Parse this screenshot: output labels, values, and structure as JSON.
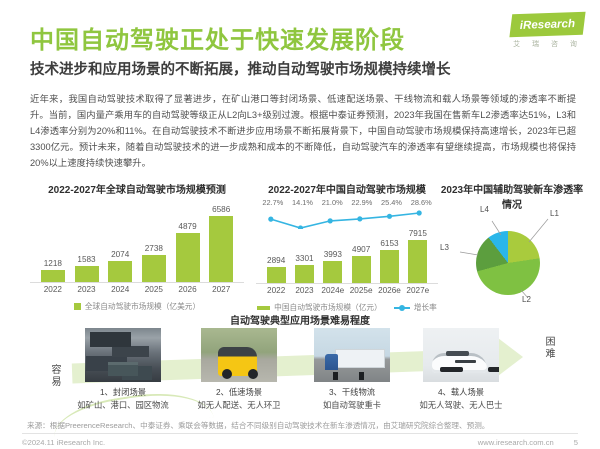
{
  "header": {
    "title": "中国自动驾驶正处于快速发展阶段",
    "subtitle": "技术进步和应用场景的不断拓展，推动自动驾驶市场规模持续增长",
    "logo": {
      "brand": "iResearch",
      "brand_cn": "艾 瑞 咨 询"
    }
  },
  "intro_paragraph": "近年来，我国自动驾驶技术取得了显著进步，在矿山港口等封闭场景、低速配送场景、干线物流和载人场景等领域的渗透率不断提升。当前，国内量产乘用车的自动驾驶等级正从L2向L3+级别过渡。根据中泰证券预测，2023年我国在售新车L2渗透率达51%，L3和L4渗透率分别为20%和11%。在自动驾驶技术不断进步应用场景不断拓展背景下，中国自动驾驶市场规模保持高速增长，2023年已超3300亿元。预计未来，随着自动驾驶技术的进一步成熟和成本的不断降低，自动驾驶汽车的渗透率有望继续提高，市场规模也将保持20%以上速度持续快速攀升。",
  "colors": {
    "accent": "#8fc63f",
    "bar": "#a5c93e",
    "line": "#35b5e2"
  },
  "chart_data": [
    {
      "type": "bar",
      "title": "2022-2027年全球自动驾驶市场规模预测",
      "categories": [
        "2022",
        "2023",
        "2024",
        "2025",
        "2026",
        "2027"
      ],
      "values": [
        1218,
        1583,
        2074,
        2738,
        4879,
        6586
      ],
      "legend": [
        "全球自动驾驶市场规模（亿美元）"
      ],
      "ylabel": "",
      "xlabel": "",
      "ylim": [
        0,
        7000
      ],
      "grid": false
    },
    {
      "type": "bar+line",
      "title": "2022-2027年中国自动驾驶市场规模",
      "categories": [
        "2022",
        "2023",
        "2024e",
        "2025e",
        "2026e",
        "2027e"
      ],
      "series": [
        {
          "name": "中国自动驾驶市场规模（亿元）",
          "type": "bar",
          "values": [
            2894,
            3301,
            3993,
            4907,
            6153,
            7915
          ]
        },
        {
          "name": "增长率",
          "type": "line",
          "values": [
            22.7,
            14.1,
            21.0,
            22.9,
            25.4,
            28.6
          ],
          "display": [
            "22.7%",
            "14.1%",
            "21.0%",
            "22.9%",
            "25.4%",
            "28.6%"
          ]
        }
      ],
      "ylim": [
        0,
        8500
      ],
      "grid": false,
      "legend_position": "bottom"
    },
    {
      "type": "pie",
      "title": "2023年中国辅助驾驶新车渗透率情况",
      "slices": [
        {
          "label": "L1",
          "value": 24,
          "display": "24%",
          "color": "#a9cb3d"
        },
        {
          "label": "L2",
          "value": 51,
          "display": "51%",
          "color": "#7fc142"
        },
        {
          "label": "L3",
          "value": 20,
          "display": "20%",
          "color": "#5c9e3e"
        },
        {
          "label": "L4",
          "value": 11,
          "display": "11%",
          "color": "#2ab6e9"
        }
      ]
    }
  ],
  "scenarios": {
    "title": "自动驾驶典型应用场景难易程度",
    "easy_label": "容易",
    "hard_label": "困难",
    "items": [
      {
        "name": "1、封闭场景",
        "desc": "如矿山、港口、园区物流",
        "image": "port-containers"
      },
      {
        "name": "2、低速场景",
        "desc": "如无人配送、无人环卫",
        "image": "yellow-delivery-robot"
      },
      {
        "name": "3、干线物流",
        "desc": "如自动驾驶重卡",
        "image": "highway-truck"
      },
      {
        "name": "4、载人场景",
        "desc": "如无人驾驶、无人巴士",
        "image": "robotaxi-suv"
      }
    ]
  },
  "footer": {
    "source": "来源：根据PreerenceResearch、中泰证券、乘联会等数据，结合不同级别自动驾驶技术在新车渗透情况，由艾瑞研究院综合整理、预测。",
    "copyright": "©2024.11 iResearch Inc.",
    "website": "www.iresearch.com.cn",
    "page_number": "5"
  }
}
